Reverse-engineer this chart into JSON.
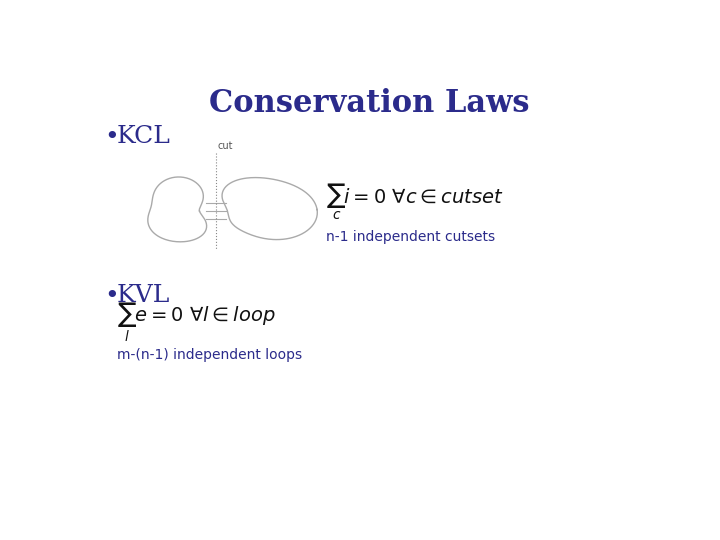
{
  "title": "Conservation Laws",
  "title_color": "#2B2B8B",
  "title_fontsize": 22,
  "bullet_color": "#2B2B8B",
  "bullet_fontsize": 18,
  "kcl_label": "KCL",
  "kvl_label": "KVL",
  "kcl_formula": "$\\sum_c i = 0 \\ \\forall c \\in cutset$",
  "kcl_subtext": "n-1 independent cutsets",
  "kvl_formula": "$\\sum_l e = 0 \\ \\forall l \\in loop$",
  "kvl_subtext": "m-(n-1) independent loops",
  "formula_color": "#111111",
  "subtext_color": "#2B2B8B",
  "subtext_fontsize": 10,
  "formula_fontsize": 14,
  "cut_label": "cut",
  "cut_fontsize": 7,
  "blob_color": "#aaaaaa",
  "bg_color": "#ffffff"
}
